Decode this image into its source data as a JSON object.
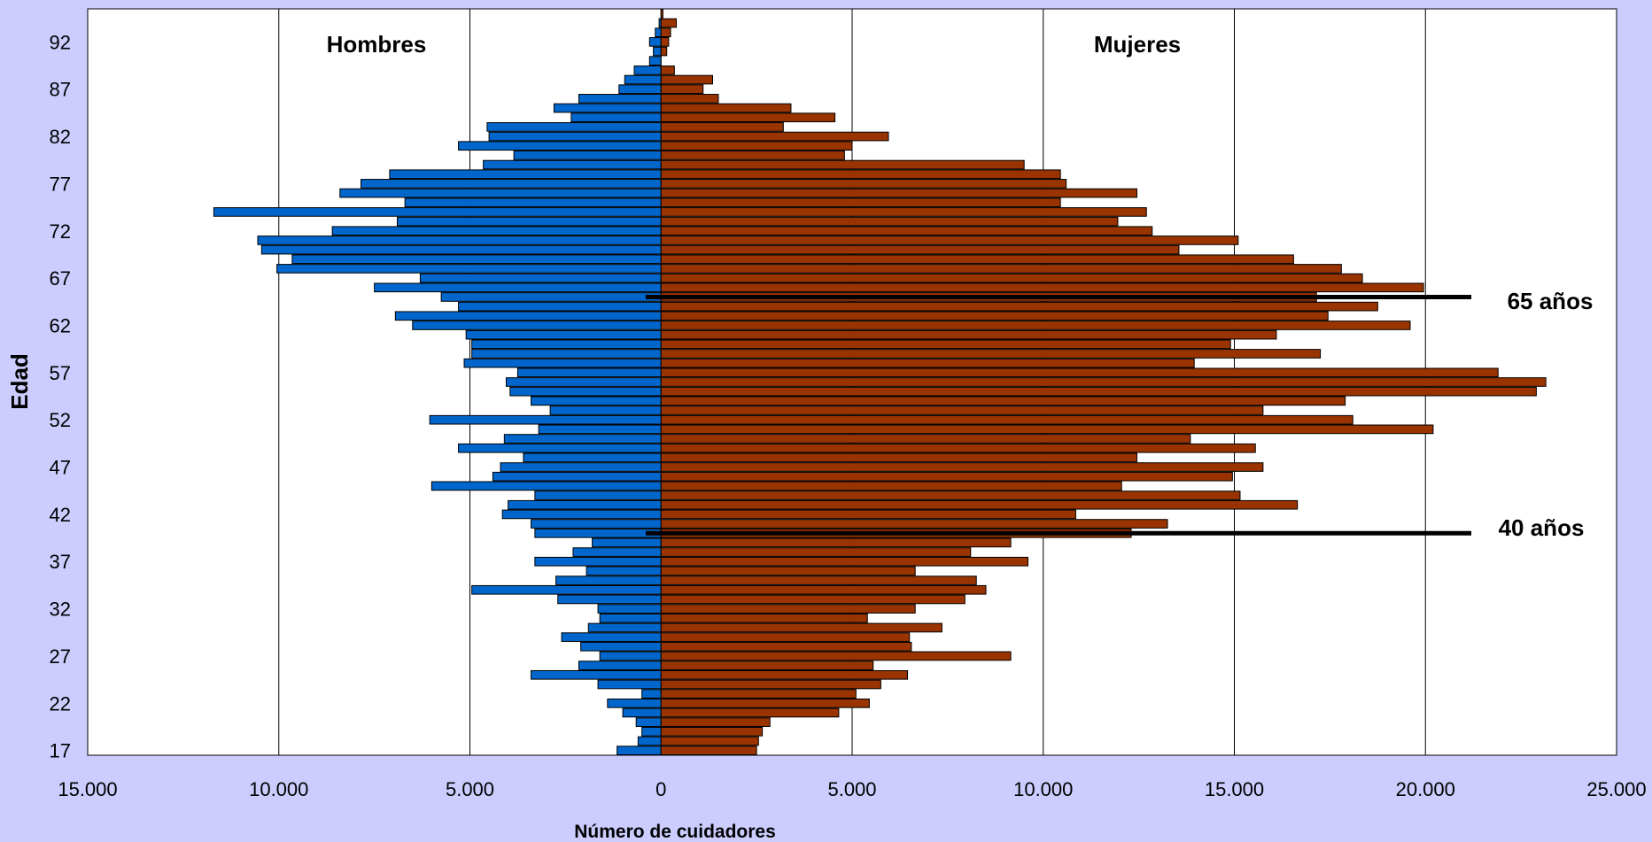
{
  "chart_data": {
    "type": "bar",
    "orientation": "horizontal",
    "variant": "population-pyramid",
    "xlabel": "Número de cuidadores",
    "ylabel": "Edad",
    "xlim": [
      -15000,
      25000
    ],
    "x_ticks": [
      -15000,
      -10000,
      -5000,
      0,
      5000,
      10000,
      15000,
      20000,
      25000
    ],
    "x_tick_labels": [
      "15.000",
      "10.000",
      "5.000",
      "0",
      "5.000",
      "10.000",
      "15.000",
      "20.000",
      "25.000"
    ],
    "y_tick_labels": [
      "17",
      "22",
      "27",
      "32",
      "37",
      "42",
      "47",
      "52",
      "57",
      "62",
      "67",
      "72",
      "77",
      "82",
      "87",
      "92"
    ],
    "grid": "vertical",
    "ages": [
      17,
      18,
      19,
      20,
      21,
      22,
      23,
      24,
      25,
      26,
      27,
      28,
      29,
      30,
      31,
      32,
      33,
      34,
      35,
      36,
      37,
      38,
      39,
      40,
      41,
      42,
      43,
      44,
      45,
      46,
      47,
      48,
      49,
      50,
      51,
      52,
      53,
      54,
      55,
      56,
      57,
      58,
      59,
      60,
      61,
      62,
      63,
      64,
      65,
      66,
      67,
      68,
      69,
      70,
      71,
      72,
      73,
      74,
      75,
      76,
      77,
      78,
      79,
      80,
      81,
      82,
      83,
      84,
      85,
      86,
      87,
      88,
      89,
      90,
      91,
      92,
      93,
      94,
      95
    ],
    "series": [
      {
        "name": "Hombres",
        "color": "#0066cc",
        "values": [
          1150,
          600,
          500,
          650,
          1000,
          1400,
          500,
          1650,
          3400,
          2150,
          1600,
          2100,
          2600,
          1900,
          1600,
          1650,
          2700,
          4950,
          2750,
          1950,
          3300,
          2300,
          1800,
          3300,
          3400,
          4150,
          4000,
          3300,
          6000,
          4400,
          4200,
          3600,
          5300,
          4100,
          3200,
          6050,
          2900,
          3400,
          3950,
          4050,
          3750,
          5150,
          4950,
          4950,
          5100,
          6500,
          6950,
          5300,
          5750,
          7500,
          6300,
          10050,
          9650,
          10450,
          10550,
          8600,
          6900,
          11700,
          6700,
          8400,
          7850,
          7100,
          4650,
          3850,
          5300,
          4500,
          4550,
          2350,
          2800,
          2150,
          1100,
          950,
          700,
          300,
          200,
          300,
          150,
          50,
          0
        ]
      },
      {
        "name": "Mujeres",
        "color": "#993300",
        "values": [
          2500,
          2550,
          2650,
          2850,
          4650,
          5450,
          5100,
          5750,
          6450,
          5550,
          9150,
          6550,
          6500,
          7350,
          5400,
          6650,
          7950,
          8500,
          8250,
          6650,
          9600,
          8100,
          9150,
          12300,
          13250,
          10850,
          16650,
          15150,
          12050,
          14950,
          15750,
          12450,
          15550,
          13850,
          20200,
          18100,
          15750,
          17900,
          22900,
          23150,
          21900,
          13950,
          17250,
          14900,
          16100,
          19600,
          17450,
          18750,
          17150,
          19950,
          18350,
          17800,
          16550,
          13550,
          15100,
          12850,
          11950,
          12700,
          10450,
          12450,
          10600,
          10450,
          9500,
          4800,
          5000,
          5950,
          3200,
          4550,
          3400,
          1500,
          1100,
          1350,
          350,
          0,
          150,
          200,
          250,
          400,
          50
        ]
      }
    ],
    "annotations": [
      {
        "text": "Hombres"
      },
      {
        "text": "Mujeres"
      },
      {
        "text": "65 años",
        "age": 65
      },
      {
        "text": "40 años",
        "age": 40
      }
    ]
  }
}
